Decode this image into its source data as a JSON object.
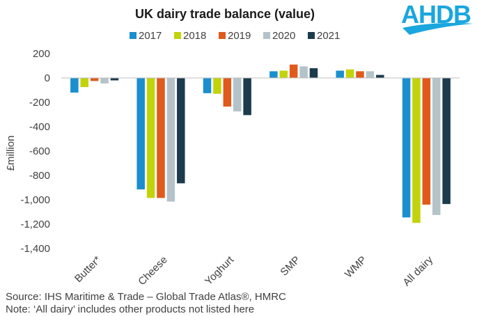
{
  "logo": {
    "text": "AHDB"
  },
  "footer": {
    "source": "Source: IHS Maritime & Trade – Global Trade Atlas®, HMRC",
    "note": "Note: ‘All dairy’ includes other products not listed here"
  },
  "chart_data": {
    "type": "bar",
    "title": "UK dairy trade balance (value)",
    "xlabel": "",
    "ylabel": "£million",
    "ylim": [
      -1400,
      200
    ],
    "yticks": [
      200,
      0,
      -200,
      -400,
      -600,
      -800,
      -1000,
      -1200,
      -1400
    ],
    "ytick_labels": [
      "200",
      "0",
      "-200",
      "-400",
      "-600",
      "-800",
      "-1,000",
      "-1,200",
      "-1,400"
    ],
    "grid": false,
    "legend_position": "top",
    "categories": [
      "Butter*",
      "Cheese",
      "Yoghurt",
      "SMP",
      "WMP",
      "All dairy"
    ],
    "series": [
      {
        "name": "2017",
        "color": "#1b8fce",
        "values": [
          -120,
          -915,
          -125,
          55,
          60,
          -1145
        ]
      },
      {
        "name": "2018",
        "color": "#c2d30a",
        "values": [
          -75,
          -985,
          -130,
          60,
          70,
          -1190
        ]
      },
      {
        "name": "2019",
        "color": "#e05a1c",
        "values": [
          -25,
          -985,
          -235,
          110,
          55,
          -1040
        ]
      },
      {
        "name": "2020",
        "color": "#b4c3c9",
        "values": [
          -45,
          -1015,
          -275,
          95,
          55,
          -1125
        ]
      },
      {
        "name": "2021",
        "color": "#1c3b4d",
        "values": [
          -20,
          -865,
          -305,
          80,
          25,
          -1035
        ]
      }
    ]
  }
}
